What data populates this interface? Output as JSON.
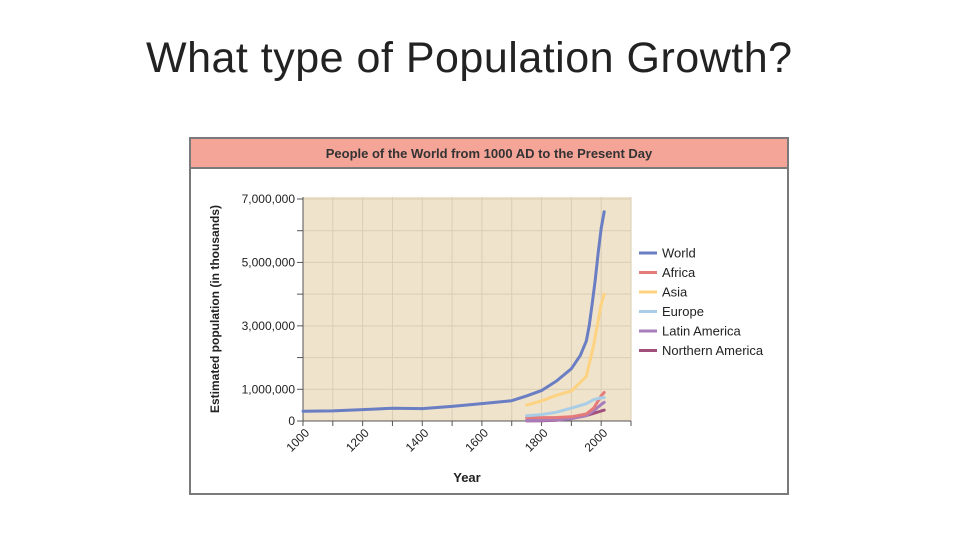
{
  "slide": {
    "title": "What type of Population Growth?"
  },
  "colors": {
    "header_bg": "#f5a598",
    "plot_bg": "#efe3cb",
    "World": "#6a7ec4",
    "Africa": "#e57a7a",
    "Asia": "#fdd382",
    "Europe": "#a9cde6",
    "Latin America": "#a87dbc",
    "Northern America": "#a24f7c"
  },
  "chart_data": {
    "type": "line",
    "title": "People of the World from 1000 AD to the Present Day",
    "xlabel": "Year",
    "ylabel": "Estimated population (in thousands)",
    "xlim": [
      1000,
      2100
    ],
    "ylim": [
      0,
      7000000
    ],
    "x_ticks": [
      "1000",
      "1200",
      "1400",
      "1600",
      "1800",
      "2000"
    ],
    "y_tick_labels": [
      "7,000,000",
      "5,000,000",
      "3,000,000",
      "1,000,000",
      "0"
    ],
    "y_tick_values": [
      7000000,
      5000000,
      3000000,
      1000000,
      0
    ],
    "legend_position": "right",
    "series": [
      {
        "name": "World",
        "points": [
          [
            1000,
            310000
          ],
          [
            1100,
            320000
          ],
          [
            1200,
            360000
          ],
          [
            1300,
            400000
          ],
          [
            1400,
            390000
          ],
          [
            1500,
            460000
          ],
          [
            1600,
            550000
          ],
          [
            1700,
            640000
          ],
          [
            1750,
            790000
          ],
          [
            1800,
            960000
          ],
          [
            1850,
            1260000
          ],
          [
            1900,
            1650000
          ],
          [
            1930,
            2070000
          ],
          [
            1950,
            2520000
          ],
          [
            1960,
            3020000
          ],
          [
            1970,
            3700000
          ],
          [
            1980,
            4440000
          ],
          [
            1990,
            5310000
          ],
          [
            2000,
            6080000
          ],
          [
            2010,
            6600000
          ]
        ]
      },
      {
        "name": "Africa",
        "points": [
          [
            1750,
            106000
          ],
          [
            1800,
            107000
          ],
          [
            1850,
            111000
          ],
          [
            1900,
            133000
          ],
          [
            1950,
            221000
          ],
          [
            1975,
            406000
          ],
          [
            2000,
            796000
          ],
          [
            2010,
            900000
          ]
        ]
      },
      {
        "name": "Asia",
        "points": [
          [
            1750,
            502000
          ],
          [
            1800,
            635000
          ],
          [
            1850,
            809000
          ],
          [
            1900,
            947000
          ],
          [
            1950,
            1402000
          ],
          [
            1975,
            2400000
          ],
          [
            2000,
            3680000
          ],
          [
            2010,
            4000000
          ]
        ]
      },
      {
        "name": "Europe",
        "points": [
          [
            1750,
            163000
          ],
          [
            1800,
            203000
          ],
          [
            1850,
            276000
          ],
          [
            1900,
            408000
          ],
          [
            1950,
            547000
          ],
          [
            1975,
            676000
          ],
          [
            2000,
            727000
          ],
          [
            2010,
            738000
          ]
        ]
      },
      {
        "name": "Latin America",
        "points": [
          [
            1750,
            16000
          ],
          [
            1800,
            24000
          ],
          [
            1850,
            38000
          ],
          [
            1900,
            74000
          ],
          [
            1950,
            167000
          ],
          [
            1975,
            322000
          ],
          [
            2000,
            519000
          ],
          [
            2010,
            590000
          ]
        ]
      },
      {
        "name": "Northern America",
        "points": [
          [
            1750,
            2000
          ],
          [
            1800,
            7000
          ],
          [
            1850,
            26000
          ],
          [
            1900,
            82000
          ],
          [
            1950,
            172000
          ],
          [
            1975,
            243000
          ],
          [
            2000,
            316000
          ],
          [
            2010,
            344000
          ]
        ]
      }
    ]
  }
}
